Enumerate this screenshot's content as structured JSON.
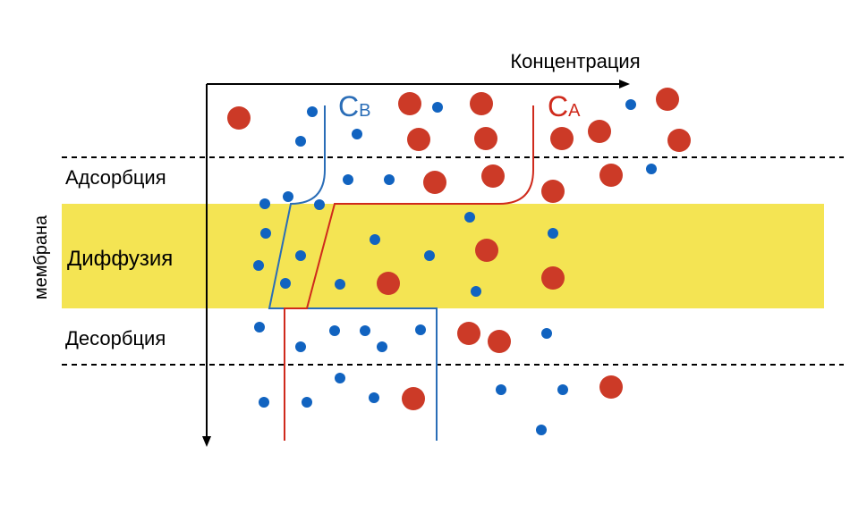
{
  "axis_label": "Концентрация",
  "side_label": "мембрана",
  "zones": {
    "adsorption": "Адсорбция",
    "diffusion": "Диффузия",
    "desorption": "Десорбция"
  },
  "curves": {
    "b": {
      "main": "C",
      "sub": "B",
      "color": "#2a6db7"
    },
    "a": {
      "main": "C",
      "sub": "A",
      "color": "#cf2a1c"
    }
  },
  "colors": {
    "membrane_band": "#f4e453",
    "small_particle": "#1163c0",
    "large_particle": "#cc3a27",
    "axis": "#000000"
  }
}
